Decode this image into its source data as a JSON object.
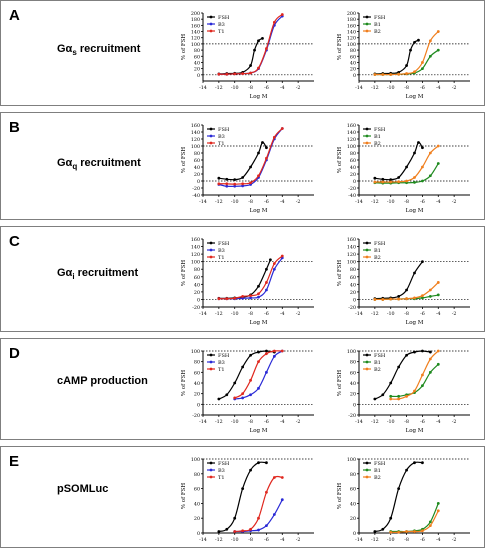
{
  "panels": [
    {
      "label": "A",
      "title": "Gα",
      "sub": "s",
      "title_rest": " recruitment"
    },
    {
      "label": "B",
      "title": "Gα",
      "sub": "q",
      "title_rest": " recruitment"
    },
    {
      "label": "C",
      "title": "Gα",
      "sub": "i",
      "title_rest": " recruitment"
    },
    {
      "label": "D",
      "title": "cAMP production",
      "sub": "",
      "title_rest": ""
    },
    {
      "label": "E",
      "title": "pSOMLuc",
      "sub": "",
      "title_rest": ""
    }
  ],
  "colors": {
    "FSH": "#000000",
    "B3": "#2a2ad6",
    "T1": "#e0281f",
    "B1": "#1f8a1f",
    "B2": "#f07f1e"
  },
  "chart_data": [
    {
      "id": "A-left",
      "type": "line",
      "panel": "A",
      "xlabel": "Log M",
      "ylabel": "% of FSH",
      "xlim": [
        -14,
        0
      ],
      "ylim": [
        -20,
        200
      ],
      "xticks": [
        -14,
        -12,
        -10,
        -8,
        -6,
        -4,
        -2
      ],
      "yticks": [
        0,
        20,
        40,
        60,
        80,
        100,
        120,
        140,
        160,
        180,
        200
      ],
      "ref_lines": [
        0,
        100
      ],
      "legend": [
        "FSH",
        "B3",
        "T1"
      ],
      "series": [
        {
          "name": "FSH",
          "x": [
            -12,
            -11,
            -10,
            -9,
            -8,
            -7.5,
            -7,
            -6.5
          ],
          "y": [
            3,
            4,
            5,
            8,
            30,
            80,
            110,
            118
          ]
        },
        {
          "name": "B3",
          "x": [
            -12,
            -11,
            -10,
            -9,
            -8,
            -7,
            -6,
            -5,
            -4
          ],
          "y": [
            2,
            2,
            3,
            4,
            6,
            20,
            80,
            160,
            190
          ]
        },
        {
          "name": "T1",
          "x": [
            -12,
            -11,
            -10,
            -9,
            -8,
            -7,
            -6,
            -5,
            -4
          ],
          "y": [
            2,
            2,
            3,
            4,
            6,
            22,
            85,
            170,
            195
          ]
        }
      ]
    },
    {
      "id": "A-right",
      "type": "line",
      "panel": "A",
      "xlabel": "Log M",
      "ylabel": "% of FSH",
      "xlim": [
        -14,
        0
      ],
      "ylim": [
        -20,
        200
      ],
      "xticks": [
        -14,
        -12,
        -10,
        -8,
        -6,
        -4,
        -2
      ],
      "yticks": [
        0,
        20,
        40,
        60,
        80,
        100,
        120,
        140,
        160,
        180,
        200
      ],
      "ref_lines": [
        0,
        100
      ],
      "legend": [
        "FSH",
        "B1",
        "B2"
      ],
      "series": [
        {
          "name": "FSH",
          "x": [
            -12,
            -11,
            -10,
            -9,
            -8,
            -7.5,
            -7,
            -6.5
          ],
          "y": [
            3,
            4,
            5,
            8,
            30,
            80,
            105,
            112
          ]
        },
        {
          "name": "B1",
          "x": [
            -12,
            -11,
            -10,
            -9,
            -8,
            -7,
            -6,
            -5,
            -4
          ],
          "y": [
            1,
            1,
            1,
            2,
            3,
            6,
            20,
            60,
            80
          ]
        },
        {
          "name": "B2",
          "x": [
            -12,
            -11,
            -10,
            -9,
            -8,
            -7,
            -6,
            -5,
            -4
          ],
          "y": [
            1,
            1,
            1,
            2,
            4,
            10,
            40,
            110,
            140
          ]
        }
      ]
    },
    {
      "id": "B-left",
      "type": "line",
      "panel": "B",
      "xlabel": "Log M",
      "ylabel": "% of FSH",
      "xlim": [
        -14,
        0
      ],
      "ylim": [
        -40,
        160
      ],
      "xticks": [
        -14,
        -12,
        -10,
        -8,
        -6,
        -4,
        -2
      ],
      "yticks": [
        -40,
        -20,
        0,
        20,
        40,
        60,
        80,
        100,
        120,
        140,
        160
      ],
      "ref_lines": [
        0,
        100
      ],
      "legend": [
        "FSH",
        "B3",
        "T1"
      ],
      "series": [
        {
          "name": "FSH",
          "x": [
            -12,
            -11,
            -10,
            -9,
            -8,
            -7,
            -6.5,
            -6
          ],
          "y": [
            8,
            5,
            4,
            10,
            40,
            80,
            110,
            95
          ]
        },
        {
          "name": "B3",
          "x": [
            -12,
            -11,
            -10,
            -9,
            -8,
            -7,
            -6,
            -5,
            -4
          ],
          "y": [
            -10,
            -15,
            -15,
            -14,
            -10,
            10,
            60,
            120,
            150
          ]
        },
        {
          "name": "T1",
          "x": [
            -12,
            -11,
            -10,
            -9,
            -8,
            -7,
            -6,
            -5,
            -4
          ],
          "y": [
            -8,
            -8,
            -9,
            -8,
            -5,
            15,
            65,
            125,
            150
          ]
        }
      ]
    },
    {
      "id": "B-right",
      "type": "line",
      "panel": "B",
      "xlabel": "Log M",
      "ylabel": "% of FSH",
      "xlim": [
        -14,
        0
      ],
      "ylim": [
        -40,
        160
      ],
      "xticks": [
        -14,
        -12,
        -10,
        -8,
        -6,
        -4,
        -2
      ],
      "yticks": [
        -40,
        -20,
        0,
        20,
        40,
        60,
        80,
        100,
        120,
        140,
        160
      ],
      "ref_lines": [
        0,
        100
      ],
      "legend": [
        "FSH",
        "B1",
        "B2"
      ],
      "series": [
        {
          "name": "FSH",
          "x": [
            -12,
            -11,
            -10,
            -9,
            -8,
            -7,
            -6.5,
            -6
          ],
          "y": [
            8,
            5,
            4,
            10,
            40,
            80,
            110,
            95
          ]
        },
        {
          "name": "B1",
          "x": [
            -12,
            -11,
            -10,
            -9,
            -8,
            -7,
            -6,
            -5,
            -4
          ],
          "y": [
            -5,
            -6,
            -6,
            -5,
            -5,
            -4,
            0,
            15,
            50
          ]
        },
        {
          "name": "B2",
          "x": [
            -12,
            -11,
            -10,
            -9,
            -8,
            -7,
            -6,
            -5,
            -4
          ],
          "y": [
            -3,
            -3,
            -3,
            -2,
            0,
            10,
            40,
            80,
            100
          ]
        }
      ]
    },
    {
      "id": "C-left",
      "type": "line",
      "panel": "C",
      "xlabel": "Log M",
      "ylabel": "% of FSH",
      "xlim": [
        -14,
        0
      ],
      "ylim": [
        -20,
        160
      ],
      "xticks": [
        -14,
        -12,
        -10,
        -8,
        -6,
        -4,
        -2
      ],
      "yticks": [
        -20,
        0,
        20,
        40,
        60,
        80,
        100,
        120,
        140,
        160
      ],
      "ref_lines": [
        0,
        100
      ],
      "legend": [
        "FSH",
        "B3",
        "T1"
      ],
      "series": [
        {
          "name": "FSH",
          "x": [
            -12,
            -11,
            -10,
            -9,
            -8,
            -7,
            -6,
            -5.5
          ],
          "y": [
            3,
            3,
            4,
            6,
            12,
            35,
            80,
            105
          ]
        },
        {
          "name": "B3",
          "x": [
            -12,
            -11,
            -10,
            -9,
            -8,
            -7,
            -6,
            -5,
            -4
          ],
          "y": [
            2,
            2,
            2,
            3,
            4,
            6,
            25,
            80,
            110
          ]
        },
        {
          "name": "T1",
          "x": [
            -12,
            -11,
            -10,
            -9,
            -8,
            -7,
            -6,
            -5,
            -4
          ],
          "y": [
            2,
            2,
            3,
            8,
            10,
            15,
            45,
            95,
            115
          ]
        }
      ]
    },
    {
      "id": "C-right",
      "type": "line",
      "panel": "C",
      "xlabel": "Log M",
      "ylabel": "% of FSH",
      "xlim": [
        -14,
        0
      ],
      "ylim": [
        -20,
        160
      ],
      "xticks": [
        -14,
        -12,
        -10,
        -8,
        -6,
        -4,
        -2
      ],
      "yticks": [
        -20,
        0,
        20,
        40,
        60,
        80,
        100,
        120,
        140,
        160
      ],
      "ref_lines": [
        0,
        100
      ],
      "legend": [
        "FSH",
        "B1",
        "B2"
      ],
      "series": [
        {
          "name": "FSH",
          "x": [
            -12,
            -11,
            -10,
            -9,
            -8,
            -7,
            -6
          ],
          "y": [
            2,
            3,
            4,
            8,
            25,
            70,
            100
          ]
        },
        {
          "name": "B1",
          "x": [
            -12,
            -11,
            -10,
            -9,
            -8,
            -7,
            -6,
            -5,
            -4
          ],
          "y": [
            0,
            0,
            1,
            1,
            2,
            2,
            4,
            8,
            12
          ]
        },
        {
          "name": "B2",
          "x": [
            -12,
            -11,
            -10,
            -9,
            -8,
            -7,
            -6,
            -5,
            -4
          ],
          "y": [
            0,
            0,
            1,
            1,
            2,
            4,
            10,
            25,
            45
          ]
        }
      ]
    },
    {
      "id": "D-left",
      "type": "line",
      "panel": "D",
      "xlabel": "Log M",
      "ylabel": "% of FSH",
      "xlim": [
        -14,
        0
      ],
      "ylim": [
        -20,
        100
      ],
      "xticks": [
        -14,
        -12,
        -10,
        -8,
        -6,
        -4,
        -2
      ],
      "yticks": [
        -20,
        0,
        20,
        40,
        60,
        80,
        100
      ],
      "ref_lines": [
        0,
        100
      ],
      "legend": [
        "FSH",
        "B3",
        "T1"
      ],
      "series": [
        {
          "name": "FSH",
          "x": [
            -12,
            -11,
            -10,
            -9,
            -8,
            -7,
            -6,
            -5
          ],
          "y": [
            10,
            18,
            40,
            70,
            92,
            98,
            100,
            98
          ]
        },
        {
          "name": "B3",
          "x": [
            -10,
            -9,
            -8,
            -7,
            -6,
            -5,
            -4
          ],
          "y": [
            10,
            12,
            18,
            30,
            60,
            90,
            100
          ]
        },
        {
          "name": "T1",
          "x": [
            -10,
            -9,
            -8,
            -7,
            -6,
            -5,
            -4
          ],
          "y": [
            12,
            20,
            45,
            80,
            95,
            100,
            100
          ]
        }
      ]
    },
    {
      "id": "D-right",
      "type": "line",
      "panel": "D",
      "xlabel": "Log M",
      "ylabel": "% of FSH",
      "xlim": [
        -14,
        0
      ],
      "ylim": [
        -20,
        100
      ],
      "xticks": [
        -14,
        -12,
        -10,
        -8,
        -6,
        -4,
        -2
      ],
      "yticks": [
        -20,
        0,
        20,
        40,
        60,
        80,
        100
      ],
      "ref_lines": [
        0,
        100
      ],
      "legend": [
        "FSH",
        "B1",
        "B2"
      ],
      "series": [
        {
          "name": "FSH",
          "x": [
            -12,
            -11,
            -10,
            -9,
            -8,
            -7,
            -6,
            -5
          ],
          "y": [
            10,
            18,
            40,
            70,
            92,
            98,
            100,
            98
          ]
        },
        {
          "name": "B1",
          "x": [
            -10,
            -9,
            -8,
            -7,
            -6,
            -5,
            -4
          ],
          "y": [
            15,
            15,
            18,
            22,
            35,
            60,
            75
          ]
        },
        {
          "name": "B2",
          "x": [
            -10,
            -9,
            -8,
            -7,
            -6,
            -5,
            -4
          ],
          "y": [
            10,
            10,
            15,
            25,
            55,
            85,
            100
          ]
        }
      ]
    },
    {
      "id": "E-left",
      "type": "line",
      "panel": "E",
      "xlabel": "",
      "ylabel": "% of FSH",
      "xlim": [
        -14,
        0
      ],
      "ylim": [
        0,
        100
      ],
      "xticks": [
        -14,
        -12,
        -10,
        -8,
        -6,
        -4,
        -2
      ],
      "yticks": [
        0,
        20,
        40,
        60,
        80,
        100
      ],
      "ref_lines": [
        0,
        100
      ],
      "legend": [
        "FSH",
        "B3",
        "T1"
      ],
      "series": [
        {
          "name": "FSH",
          "x": [
            -12,
            -11,
            -10,
            -9,
            -8,
            -7,
            -6
          ],
          "y": [
            2,
            5,
            20,
            60,
            85,
            95,
            95
          ]
        },
        {
          "name": "B3",
          "x": [
            -10,
            -9,
            -8,
            -7,
            -6,
            -5,
            -4
          ],
          "y": [
            2,
            2,
            3,
            4,
            10,
            25,
            45
          ]
        },
        {
          "name": "T1",
          "x": [
            -10,
            -9,
            -8,
            -7,
            -6,
            -5,
            -4
          ],
          "y": [
            2,
            3,
            5,
            20,
            55,
            75,
            75
          ]
        }
      ]
    },
    {
      "id": "E-right",
      "type": "line",
      "panel": "E",
      "xlabel": "",
      "ylabel": "% of FSH",
      "xlim": [
        -14,
        0
      ],
      "ylim": [
        0,
        100
      ],
      "xticks": [
        -14,
        -12,
        -10,
        -8,
        -6,
        -4,
        -2
      ],
      "yticks": [
        0,
        20,
        40,
        60,
        80,
        100
      ],
      "ref_lines": [
        0,
        100
      ],
      "legend": [
        "FSH",
        "B1",
        "B2"
      ],
      "series": [
        {
          "name": "FSH",
          "x": [
            -12,
            -11,
            -10,
            -9,
            -8,
            -7,
            -6
          ],
          "y": [
            2,
            5,
            20,
            60,
            85,
            95,
            95
          ]
        },
        {
          "name": "B1",
          "x": [
            -10,
            -9,
            -8,
            -7,
            -6,
            -5,
            -4
          ],
          "y": [
            2,
            2,
            2,
            3,
            5,
            15,
            40
          ]
        },
        {
          "name": "B2",
          "x": [
            -10,
            -9,
            -8,
            -7,
            -6,
            -5,
            -4
          ],
          "y": [
            1,
            1,
            2,
            2,
            3,
            10,
            30
          ]
        }
      ]
    }
  ]
}
